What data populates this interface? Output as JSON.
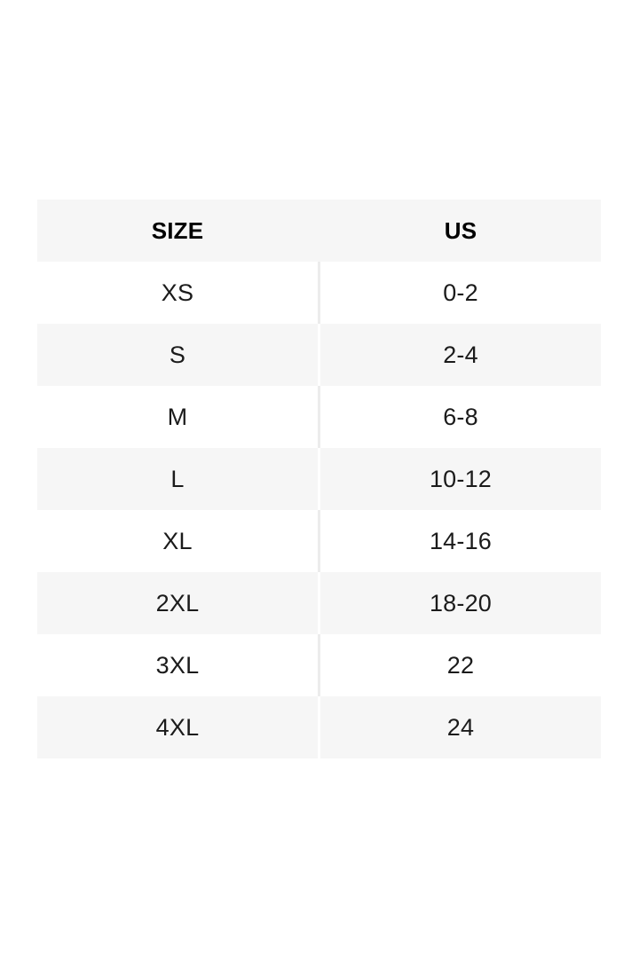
{
  "chart_data": {
    "type": "table",
    "columns": [
      "SIZE",
      "US"
    ],
    "rows": [
      [
        "XS",
        "0-2"
      ],
      [
        "S",
        "2-4"
      ],
      [
        "M",
        "6-8"
      ],
      [
        "L",
        "10-12"
      ],
      [
        "XL",
        "14-16"
      ],
      [
        "2XL",
        "18-20"
      ],
      [
        "3XL",
        "22"
      ],
      [
        "4XL",
        "24"
      ]
    ],
    "layout_hints": {
      "header_background": "#f6f6f6",
      "shaded_row_background": "#f6f6f6",
      "plain_row_background": "#ffffff",
      "text_color": "#1b1b1b",
      "header_text_color": "#000000",
      "page_background": "#ffffff",
      "zebra_striping": true,
      "grid": false
    }
  }
}
